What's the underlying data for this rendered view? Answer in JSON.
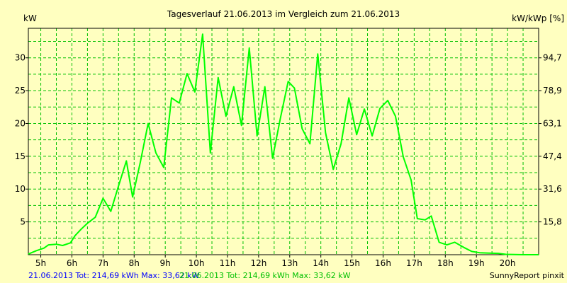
{
  "chart_data": {
    "type": "line",
    "title": "Tagesverlauf 21.06.2013 im Vergleich zum 21.06.2013",
    "ylabel_left": "kW",
    "ylabel_right": "kW/kWp [%]",
    "xlim": [
      4.6,
      21.0
    ],
    "ylim": [
      0,
      34.5
    ],
    "grid": true,
    "x_ticks": [
      {
        "x": 5,
        "label": "5h"
      },
      {
        "x": 6,
        "label": "6h"
      },
      {
        "x": 7,
        "label": "7h"
      },
      {
        "x": 8,
        "label": "8h"
      },
      {
        "x": 9,
        "label": "9h"
      },
      {
        "x": 10,
        "label": "10h"
      },
      {
        "x": 11,
        "label": "11h"
      },
      {
        "x": 12,
        "label": "12h"
      },
      {
        "x": 13,
        "label": "13h"
      },
      {
        "x": 14,
        "label": "14h"
      },
      {
        "x": 15,
        "label": "15h"
      },
      {
        "x": 16,
        "label": "16h"
      },
      {
        "x": 17,
        "label": "17h"
      },
      {
        "x": 18,
        "label": "18h"
      },
      {
        "x": 19,
        "label": "19h"
      },
      {
        "x": 20,
        "label": "20h"
      }
    ],
    "y_ticks_left": [
      {
        "y": 5,
        "label": "5"
      },
      {
        "y": 10,
        "label": "10"
      },
      {
        "y": 15,
        "label": "15"
      },
      {
        "y": 20,
        "label": "20"
      },
      {
        "y": 25,
        "label": "25"
      },
      {
        "y": 30,
        "label": "30"
      }
    ],
    "y_ticks_right": [
      {
        "y": 5,
        "label": "15,8"
      },
      {
        "y": 10,
        "label": "31,6"
      },
      {
        "y": 15,
        "label": "47,4"
      },
      {
        "y": 20,
        "label": "63,1"
      },
      {
        "y": 25,
        "label": "78,9"
      },
      {
        "y": 30,
        "label": "94,7"
      }
    ],
    "series": [
      {
        "color": "#00ff00",
        "points": [
          [
            4.6,
            0.1
          ],
          [
            4.85,
            0.6
          ],
          [
            5.1,
            1.0
          ],
          [
            5.25,
            1.5
          ],
          [
            5.5,
            1.6
          ],
          [
            5.7,
            1.4
          ],
          [
            5.95,
            1.8
          ],
          [
            6.1,
            2.9
          ],
          [
            6.3,
            3.9
          ],
          [
            6.5,
            4.8
          ],
          [
            6.75,
            5.7
          ],
          [
            7.0,
            8.6
          ],
          [
            7.25,
            6.6
          ],
          [
            7.5,
            10.5
          ],
          [
            7.75,
            14.3
          ],
          [
            7.95,
            8.8
          ],
          [
            8.2,
            14.1
          ],
          [
            8.45,
            20.0
          ],
          [
            8.7,
            15.5
          ],
          [
            8.95,
            13.3
          ],
          [
            9.2,
            23.9
          ],
          [
            9.45,
            23.1
          ],
          [
            9.7,
            27.6
          ],
          [
            9.95,
            24.8
          ],
          [
            10.2,
            33.6
          ],
          [
            10.45,
            15.5
          ],
          [
            10.7,
            27.0
          ],
          [
            10.95,
            21.1
          ],
          [
            11.2,
            25.6
          ],
          [
            11.45,
            19.7
          ],
          [
            11.7,
            31.5
          ],
          [
            11.95,
            18.1
          ],
          [
            12.2,
            25.6
          ],
          [
            12.45,
            14.7
          ],
          [
            12.7,
            20.8
          ],
          [
            12.95,
            26.4
          ],
          [
            13.15,
            25.4
          ],
          [
            13.4,
            19.2
          ],
          [
            13.65,
            16.9
          ],
          [
            13.9,
            30.6
          ],
          [
            14.15,
            18.6
          ],
          [
            14.4,
            13.0
          ],
          [
            14.65,
            16.9
          ],
          [
            14.9,
            23.9
          ],
          [
            15.15,
            18.3
          ],
          [
            15.4,
            22.2
          ],
          [
            15.65,
            18.1
          ],
          [
            15.9,
            22.3
          ],
          [
            16.15,
            23.5
          ],
          [
            16.4,
            21.1
          ],
          [
            16.65,
            14.9
          ],
          [
            16.9,
            11.4
          ],
          [
            17.1,
            5.5
          ],
          [
            17.35,
            5.3
          ],
          [
            17.55,
            5.9
          ],
          [
            17.8,
            1.9
          ],
          [
            18.05,
            1.5
          ],
          [
            18.3,
            1.9
          ],
          [
            18.6,
            1.1
          ],
          [
            18.85,
            0.5
          ],
          [
            19.1,
            0.3
          ],
          [
            19.4,
            0.25
          ],
          [
            19.7,
            0.2
          ],
          [
            19.95,
            0.05
          ],
          [
            20.5,
            0.0
          ],
          [
            21.0,
            0.0
          ]
        ]
      }
    ]
  },
  "footer": {
    "entry1": "21.06.2013 Tot: 214,69 kWh Max: 33,62 kW",
    "entry2": "21.06.2013 Tot: 214,69 kWh Max: 33,62 kW",
    "brand": "SunnyReport pinxit"
  },
  "colors": {
    "background": "#ffffc0",
    "grid": "#00c000",
    "line": "#00ff00",
    "entry1": "#0000ff",
    "entry2": "#00c000"
  }
}
